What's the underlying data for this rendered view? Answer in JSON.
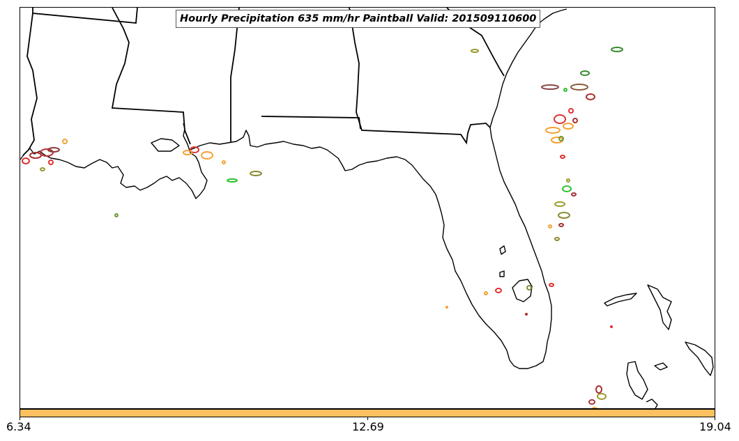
{
  "title": "Hourly Precipitation 635 mm/hr Paintball Valid: 201509110600",
  "colorbar": {
    "color": "#ffc060",
    "ticks": [
      "6.34",
      "12.69",
      "19.04"
    ]
  },
  "colors": {
    "coastline": "#000000",
    "paintball_palette": [
      "#e03030",
      "#a83030",
      "#f5a030",
      "#6a9a30",
      "#9a9a30",
      "#30c030",
      "#8a5a3a"
    ]
  }
}
